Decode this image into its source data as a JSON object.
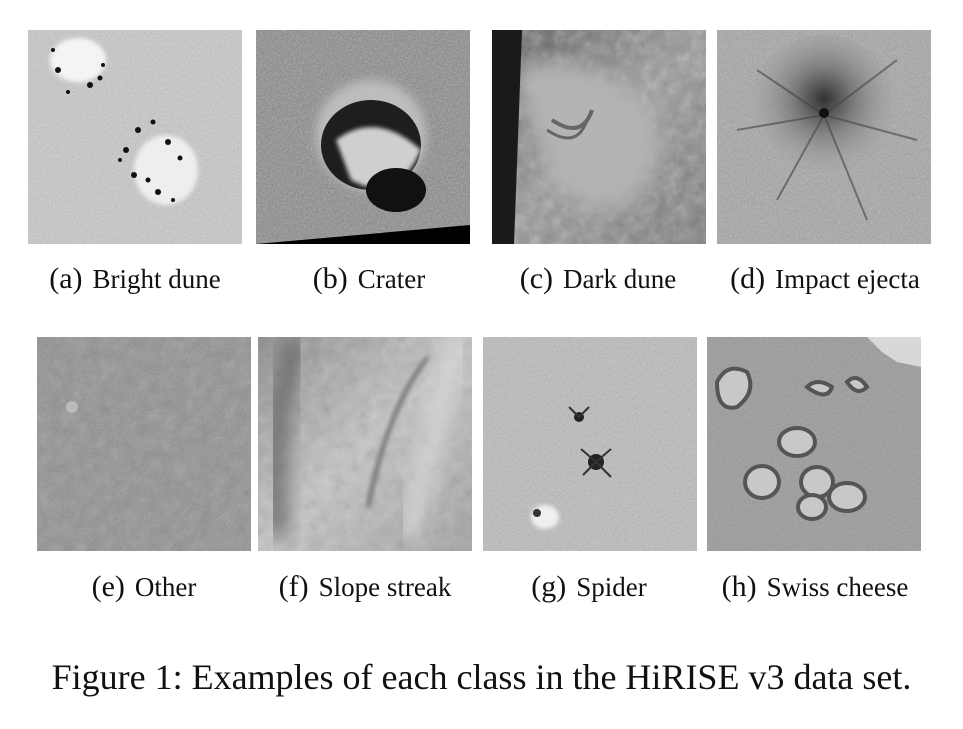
{
  "figure": {
    "panels": [
      {
        "label": "(a)",
        "name": "Bright dune"
      },
      {
        "label": "(b)",
        "name": "Crater"
      },
      {
        "label": "(c)",
        "name": "Dark dune"
      },
      {
        "label": "(d)",
        "name": "Impact ejecta"
      },
      {
        "label": "(e)",
        "name": "Other"
      },
      {
        "label": "(f)",
        "name": "Slope streak"
      },
      {
        "label": "(g)",
        "name": "Spider"
      },
      {
        "label": "(h)",
        "name": "Swiss cheese"
      }
    ],
    "caption": "Figure 1: Examples of each class in the HiRISE v3 data set."
  }
}
